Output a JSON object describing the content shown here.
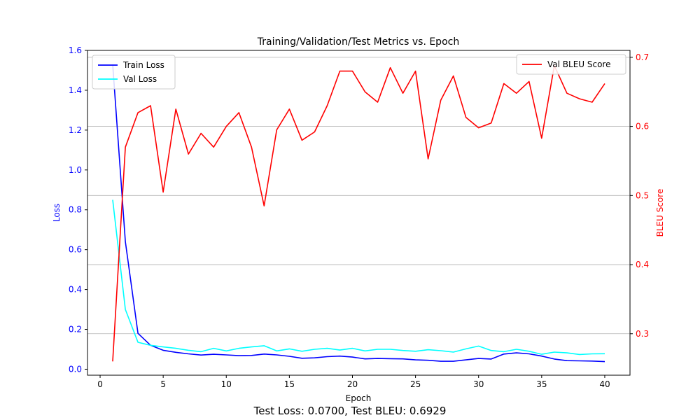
{
  "footer": "Test Loss: 0.0700, Test BLEU: 0.6929",
  "chart_data": {
    "type": "line",
    "title": "Training/Validation/Test Metrics vs. Epoch",
    "xlabel": "Epoch",
    "ylabel_left": "Loss",
    "ylabel_right": "BLEU Score",
    "xlim": [
      -1,
      42
    ],
    "ylim_left": [
      -0.03,
      1.6
    ],
    "ylim_right": [
      0.24,
      0.71
    ],
    "xticks": [
      0,
      5,
      10,
      15,
      20,
      25,
      30,
      35,
      40
    ],
    "yticks_left": [
      0.0,
      0.2,
      0.4,
      0.6,
      0.8,
      1.0,
      1.2,
      1.4,
      1.6
    ],
    "yticks_right": [
      0.3,
      0.4,
      0.5,
      0.6,
      0.7
    ],
    "grid": "horizontal, right axis",
    "legend_left": "top-left",
    "legend_right": "top-right",
    "x": [
      1,
      2,
      3,
      4,
      5,
      6,
      7,
      8,
      9,
      10,
      11,
      12,
      13,
      14,
      15,
      16,
      17,
      18,
      19,
      20,
      21,
      22,
      23,
      24,
      25,
      26,
      27,
      28,
      29,
      30,
      31,
      32,
      33,
      34,
      35,
      36,
      37,
      38,
      39,
      40
    ],
    "series": [
      {
        "name": "Train Loss",
        "axis": "left",
        "color": "#0000ff",
        "values": [
          1.53,
          0.64,
          0.18,
          0.12,
          0.095,
          0.085,
          0.077,
          0.071,
          0.075,
          0.072,
          0.068,
          0.069,
          0.076,
          0.072,
          0.065,
          0.055,
          0.057,
          0.063,
          0.066,
          0.061,
          0.052,
          0.054,
          0.053,
          0.052,
          0.047,
          0.045,
          0.04,
          0.04,
          0.047,
          0.054,
          0.051,
          0.076,
          0.082,
          0.077,
          0.066,
          0.051,
          0.043,
          0.042,
          0.041,
          0.038
        ]
      },
      {
        "name": "Val Loss",
        "axis": "left",
        "color": "#00ffff",
        "values": [
          0.85,
          0.3,
          0.135,
          0.12,
          0.112,
          0.105,
          0.095,
          0.088,
          0.105,
          0.092,
          0.105,
          0.112,
          0.118,
          0.092,
          0.102,
          0.09,
          0.1,
          0.105,
          0.096,
          0.105,
          0.092,
          0.1,
          0.1,
          0.094,
          0.09,
          0.098,
          0.093,
          0.086,
          0.102,
          0.116,
          0.094,
          0.088,
          0.1,
          0.09,
          0.075,
          0.086,
          0.082,
          0.074,
          0.077,
          0.078
        ]
      },
      {
        "name": "Val BLEU Score",
        "axis": "right",
        "color": "#ff0000",
        "values": [
          0.26,
          0.57,
          0.62,
          0.63,
          0.505,
          0.625,
          0.56,
          0.59,
          0.57,
          0.6,
          0.62,
          0.57,
          0.485,
          0.595,
          0.625,
          0.58,
          0.592,
          0.63,
          0.68,
          0.68,
          0.65,
          0.635,
          0.685,
          0.648,
          0.68,
          0.553,
          0.638,
          0.673,
          0.613,
          0.598,
          0.605,
          0.662,
          0.648,
          0.665,
          0.583,
          0.688,
          0.648,
          0.64,
          0.635,
          0.662
        ]
      }
    ]
  }
}
